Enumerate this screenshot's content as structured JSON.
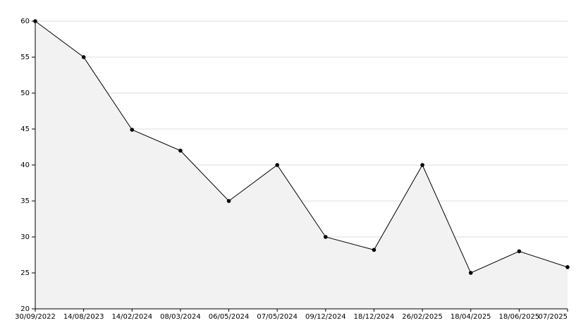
{
  "chart_data": {
    "type": "area",
    "categories": [
      "30/09/2022",
      "14/08/2023",
      "14/02/2024",
      "08/03/2024",
      "06/05/2024",
      "07/05/2024",
      "09/12/2024",
      "18/12/2024",
      "26/02/2025",
      "18/04/2025",
      "18/06/2025",
      "07/2025"
    ],
    "values": [
      60,
      55,
      44.9,
      42,
      35,
      40,
      30,
      28.2,
      40,
      25,
      28,
      25.8
    ],
    "color": "#000000",
    "fill": "#f2f2f2",
    "ylim": [
      20,
      60
    ],
    "yticks": [
      20,
      25,
      30,
      35,
      40,
      45,
      50,
      55,
      60
    ],
    "grid": true
  }
}
